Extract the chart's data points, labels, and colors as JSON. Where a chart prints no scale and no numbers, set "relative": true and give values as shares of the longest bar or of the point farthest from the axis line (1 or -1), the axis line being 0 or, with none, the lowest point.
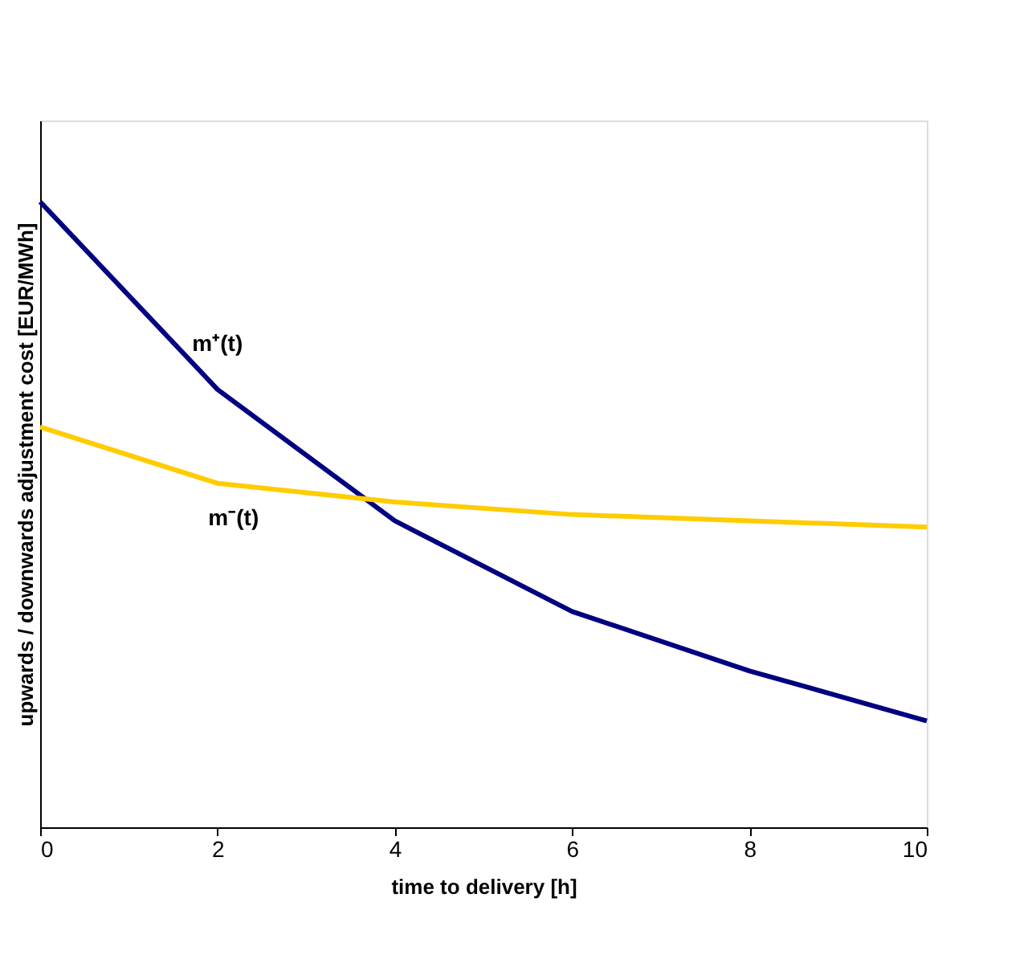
{
  "chart_data": {
    "type": "line",
    "relative": true,
    "xlabel": "time to delivery [h]",
    "ylabel": "upwards / downwards adjustment cost [EUR/MWh]",
    "x": [
      0,
      2,
      4,
      6,
      8,
      10
    ],
    "xlim": [
      0,
      10
    ],
    "xticks": [
      0,
      2,
      4,
      6,
      8,
      10
    ],
    "grid": false,
    "legend": false,
    "marker": "none",
    "line_style": "solid",
    "series": [
      {
        "name": "m⁺(t)",
        "color": "#000080",
        "values": [
          1,
          0.7,
          0.49,
          0.345,
          0.25,
          0.17
        ]
      },
      {
        "name": "m⁻(t)",
        "color": "#ffcc00",
        "values": [
          0.64,
          0.55,
          0.52,
          0.5,
          0.49,
          0.48
        ]
      }
    ]
  }
}
